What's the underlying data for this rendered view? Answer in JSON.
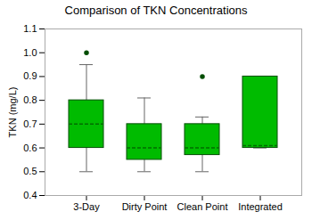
{
  "chart_data": {
    "type": "box",
    "title": "Comparison of TKN Concentrations",
    "ylabel": "TKN (mg/L)",
    "categories": [
      "3-Day",
      "Dirty Point",
      "Clean Point",
      "Integrated"
    ],
    "boxes": [
      {
        "q1": 0.6,
        "median": 0.7,
        "q3": 0.8,
        "whislo": 0.5,
        "whishi": 0.95,
        "fliers": [
          1.0
        ]
      },
      {
        "q1": 0.55,
        "median": 0.6,
        "q3": 0.7,
        "whislo": 0.5,
        "whishi": 0.81,
        "fliers": []
      },
      {
        "q1": 0.57,
        "median": 0.6,
        "q3": 0.7,
        "whislo": 0.5,
        "whishi": 0.73,
        "fliers": [
          0.9
        ]
      },
      {
        "q1": 0.6,
        "median": 0.61,
        "q3": 0.9,
        "whislo": 0.6,
        "whishi": 0.9,
        "fliers": []
      }
    ],
    "color": "#00BB00",
    "ylim": [
      0.4,
      1.1
    ],
    "yticks": [
      0.4,
      0.5,
      0.6,
      0.7,
      0.8,
      0.9,
      {
        "value": 1.0,
        "label": "1.0"
      },
      1.1
    ],
    "grid": false
  }
}
